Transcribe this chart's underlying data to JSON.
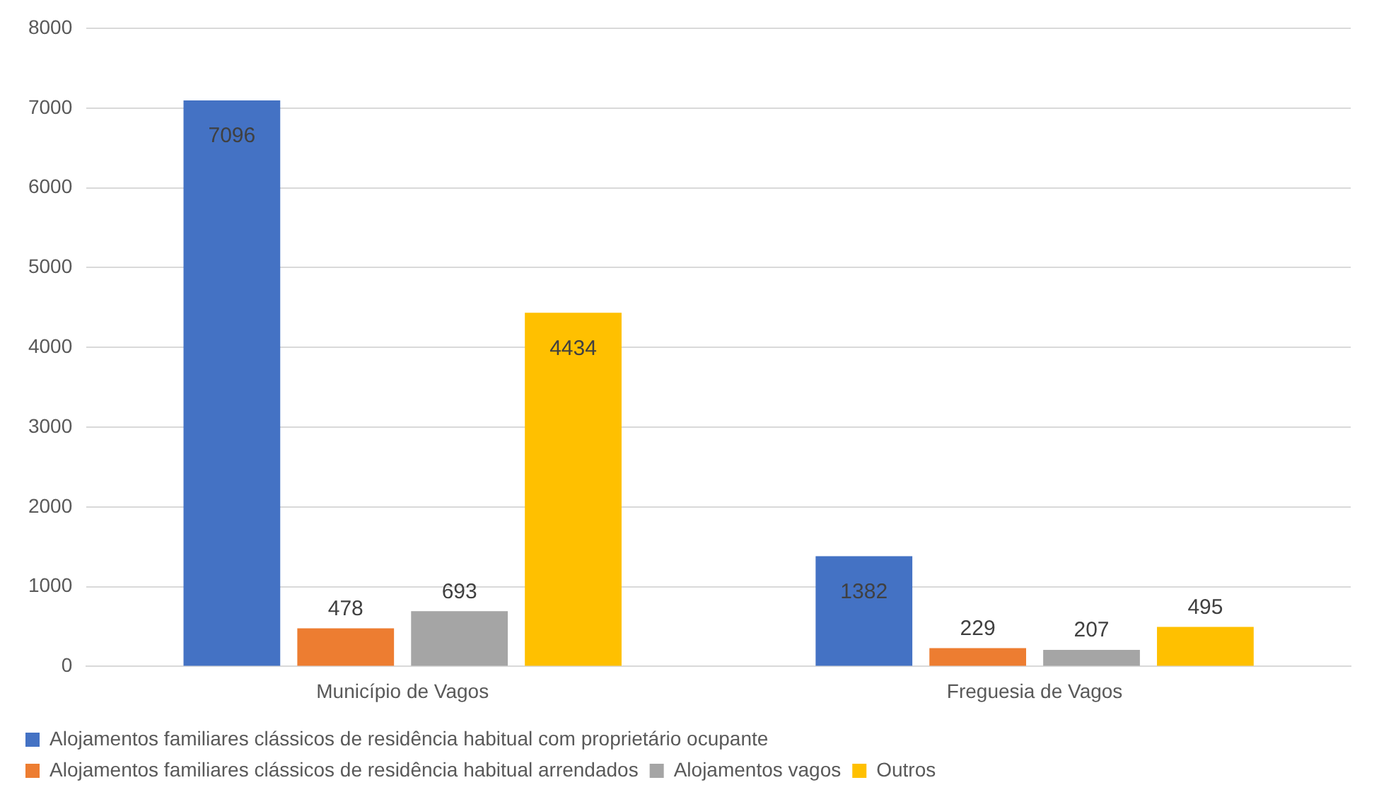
{
  "chart_data": {
    "type": "bar",
    "categories": [
      "Município de Vagos",
      "Freguesia de Vagos"
    ],
    "series": [
      {
        "name": "Alojamentos familiares clássicos de residência habitual com proprietário ocupante",
        "color": "#4472c4",
        "values": [
          7096,
          1382
        ]
      },
      {
        "name": "Alojamentos familiares clássicos de residência habitual arrendados",
        "color": "#ed7d31",
        "values": [
          478,
          229
        ]
      },
      {
        "name": "Alojamentos vagos",
        "color": "#a5a5a5",
        "values": [
          693,
          207
        ]
      },
      {
        "name": "Outros",
        "color": "#ffc000",
        "values": [
          4434,
          495
        ]
      }
    ],
    "ylim": [
      0,
      8000
    ],
    "yticks": [
      0,
      1000,
      2000,
      3000,
      4000,
      5000,
      6000,
      7000,
      8000
    ],
    "grid": "y",
    "legend": "bottom",
    "data_labels": true
  }
}
